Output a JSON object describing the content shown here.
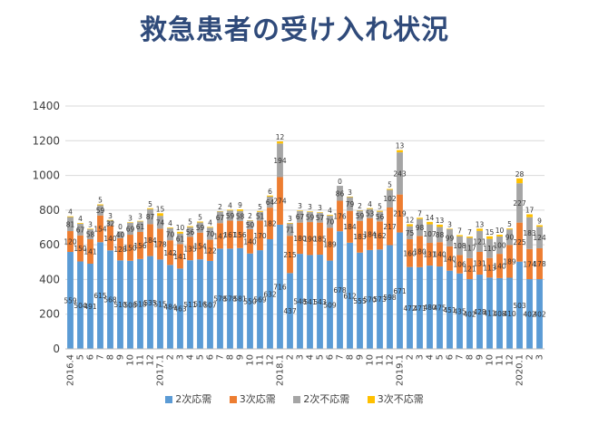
{
  "title": "救急患者の受け入れ状況",
  "colors": {
    "s1": "#5b9bd5",
    "s2": "#ed7d31",
    "s3": "#a5a5a5",
    "s4": "#ffc000",
    "grid": "#d9d9d9",
    "title": "#2f4a7a"
  },
  "chart_data": {
    "type": "bar",
    "stacked": true,
    "ylim": [
      0,
      1400
    ],
    "yticks": [
      "0",
      "200",
      "400",
      "600",
      "800",
      "1000",
      "1200",
      "1400"
    ],
    "grid": true,
    "legend_position": "bottom",
    "x_tick_labels": [
      "2016.4",
      "5",
      "6",
      "7",
      "8",
      "9",
      "10",
      "11",
      "12",
      "2017.1",
      "2",
      "3",
      "4",
      "5",
      "6",
      "7",
      "8",
      "9",
      "10",
      "11",
      "12",
      "2018.1",
      "2",
      "3",
      "4",
      "5",
      "6",
      "7",
      "8",
      "9",
      "10",
      "11",
      "12",
      "2019.1",
      "2",
      "3",
      "4",
      "5",
      "6",
      "7",
      "8",
      "9",
      "10",
      "11",
      "12",
      "2020.1",
      "2",
      "3"
    ],
    "series": [
      {
        "name": "2次応需",
        "values": [
          559,
          504,
          491,
          615,
          568,
          510,
          508,
          518,
          535,
          515,
          484,
          463,
          511,
          516,
          507,
          578,
          578,
          581,
          550,
          569,
          632,
          716,
          437,
          548,
          541,
          543,
          509,
          678,
          612,
          555,
          570,
          573,
          598,
          671,
          472,
          471,
          480,
          475,
          451,
          435,
          402,
          428,
          411,
          408,
          410,
          503,
          402,
          402
        ]
      },
      {
        "name": "3次応需",
        "values": [
          120,
          150,
          141,
          154,
          140,
          128,
          150,
          156,
          184,
          178,
          142,
          141,
          135,
          154,
          122,
          147,
          161,
          156,
          140,
          170,
          182,
          274,
          215,
          180,
          190,
          185,
          189,
          176,
          184,
          183,
          184,
          162,
          217,
          219,
          160,
          180,
          131,
          140,
          140,
          106,
          121,
          131,
          113,
          140,
          189,
          225,
          174,
          178
        ]
      },
      {
        "name": "2次不応需",
        "values": [
          81,
          67,
          58,
          59,
          32,
          40,
          69,
          61,
          87,
          74,
          70,
          61,
          56,
          59,
          70,
          67,
          59,
          58,
          50,
          51,
          64,
          194,
          71,
          67,
          59,
          57,
          70,
          86,
          79,
          59,
          53,
          56,
          102,
          243,
          75,
          98,
          107,
          88,
          99,
          108,
          117,
          121,
          110,
          100,
          90,
          227,
          183,
          124
        ]
      },
      {
        "name": "3次不応需",
        "values": [
          4,
          4,
          3,
          5,
          3,
          0,
          3,
          3,
          5,
          15,
          4,
          10,
          5,
          5,
          4,
          2,
          4,
          9,
          2,
          5,
          6,
          12,
          3,
          3,
          3,
          3,
          4,
          0,
          3,
          2,
          4,
          5,
          5,
          13,
          12,
          7,
          14,
          13,
          3,
          7,
          7,
          13,
          15,
          10,
          5,
          28,
          17,
          9
        ]
      }
    ]
  }
}
